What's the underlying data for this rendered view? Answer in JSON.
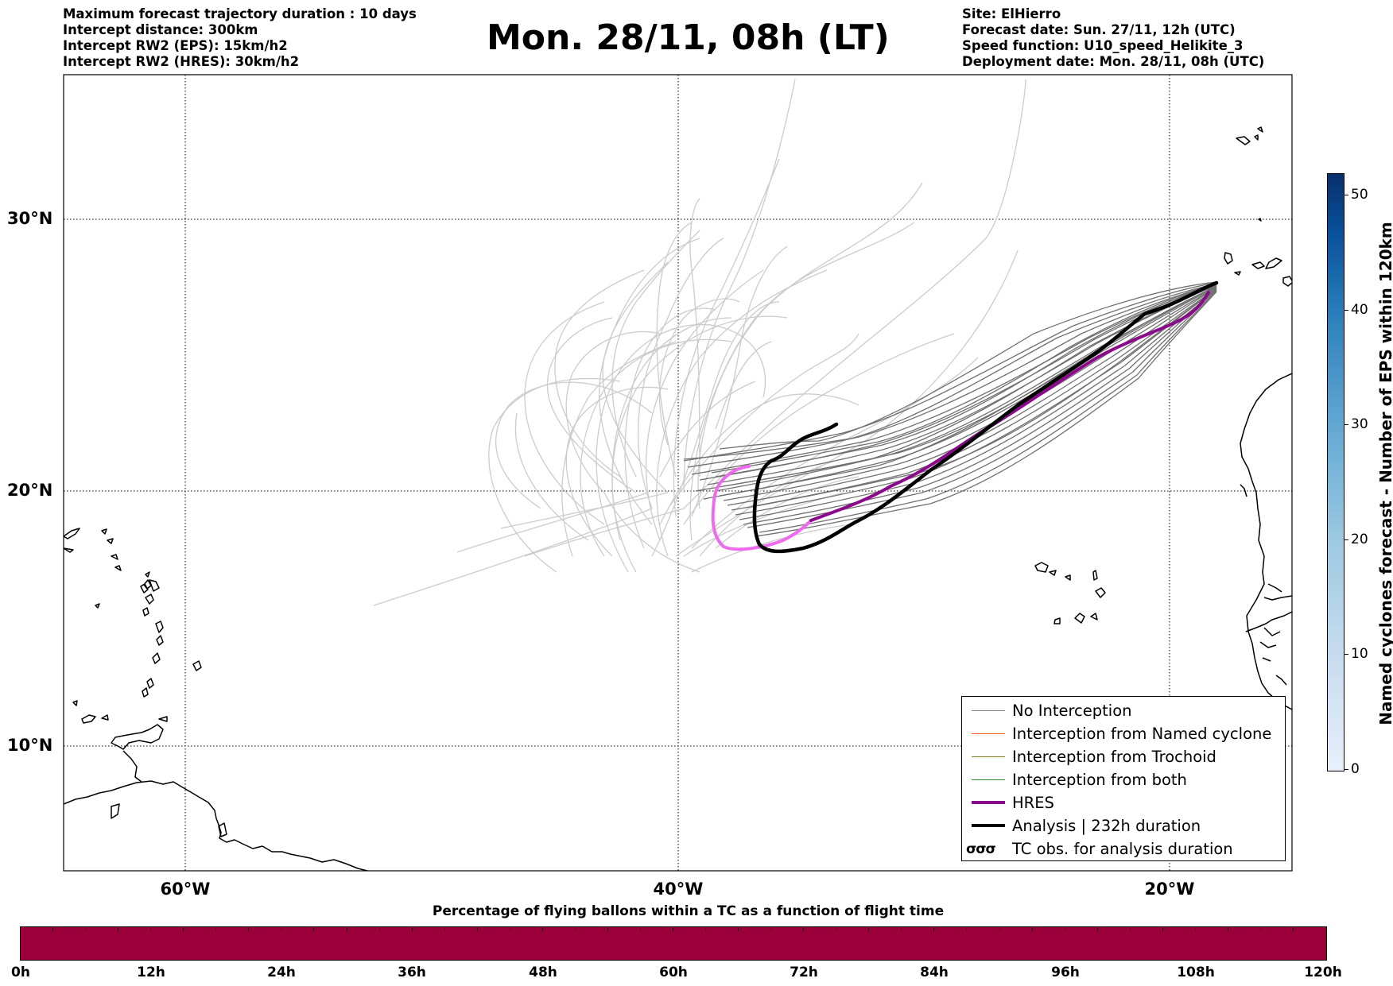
{
  "header": {
    "info_left": [
      "Maximum forecast trajectory duration : 10 days",
      "Intercept distance: 300km",
      "Intercept RW2 (EPS):  15km/h2",
      "Intercept RW2 (HRES): 30km/h2"
    ],
    "title": "Mon. 28/11, 08h (LT)",
    "info_right": [
      "Site: ElHierro",
      "Forecast date: Sun. 27/11, 12h (UTC)",
      "Speed function: U10_speed_Helikite_3",
      "Deployment date: Mon. 28/11, 08h (UTC)"
    ]
  },
  "map": {
    "lat_labels": [
      "30°N",
      "20°N",
      "10°N"
    ],
    "lon_labels": [
      "60°W",
      "40°W",
      "20°W"
    ],
    "colors": {
      "eps_no_interception": "#707070",
      "eps_cyclone_tracks": "#cccccc",
      "hres": "#8b0a8b",
      "hres_early": "#ee6bee",
      "analysis": "#000000"
    }
  },
  "legend": {
    "items": [
      {
        "label": "No Interception",
        "color": "#808080"
      },
      {
        "label": "Interception from Named cyclone",
        "color": "#ff5a1e"
      },
      {
        "label": "Interception from Trochoid",
        "color": "#808020"
      },
      {
        "label": "Interception from both",
        "color": "#2a8a2a"
      },
      {
        "label": "HRES",
        "color": "#8b0a8b"
      },
      {
        "label": "Analysis | 232h duration",
        "color": "#000000"
      },
      {
        "label": "TC obs. for analysis duration",
        "icon": "cyclone-symbols-icon"
      }
    ]
  },
  "colorbar_vertical": {
    "label": "Named cyclones forecast - Number of EPS within 120km",
    "ticks": [
      "0",
      "10",
      "20",
      "30",
      "40",
      "50"
    ]
  },
  "colorbar_horizontal": {
    "title": "Percentage of flying ballons within a TC as a function of flight time",
    "ticks": [
      "0h",
      "12h",
      "24h",
      "36h",
      "48h",
      "60h",
      "72h",
      "84h",
      "96h",
      "108h",
      "120h"
    ],
    "color": "#9b003a"
  }
}
